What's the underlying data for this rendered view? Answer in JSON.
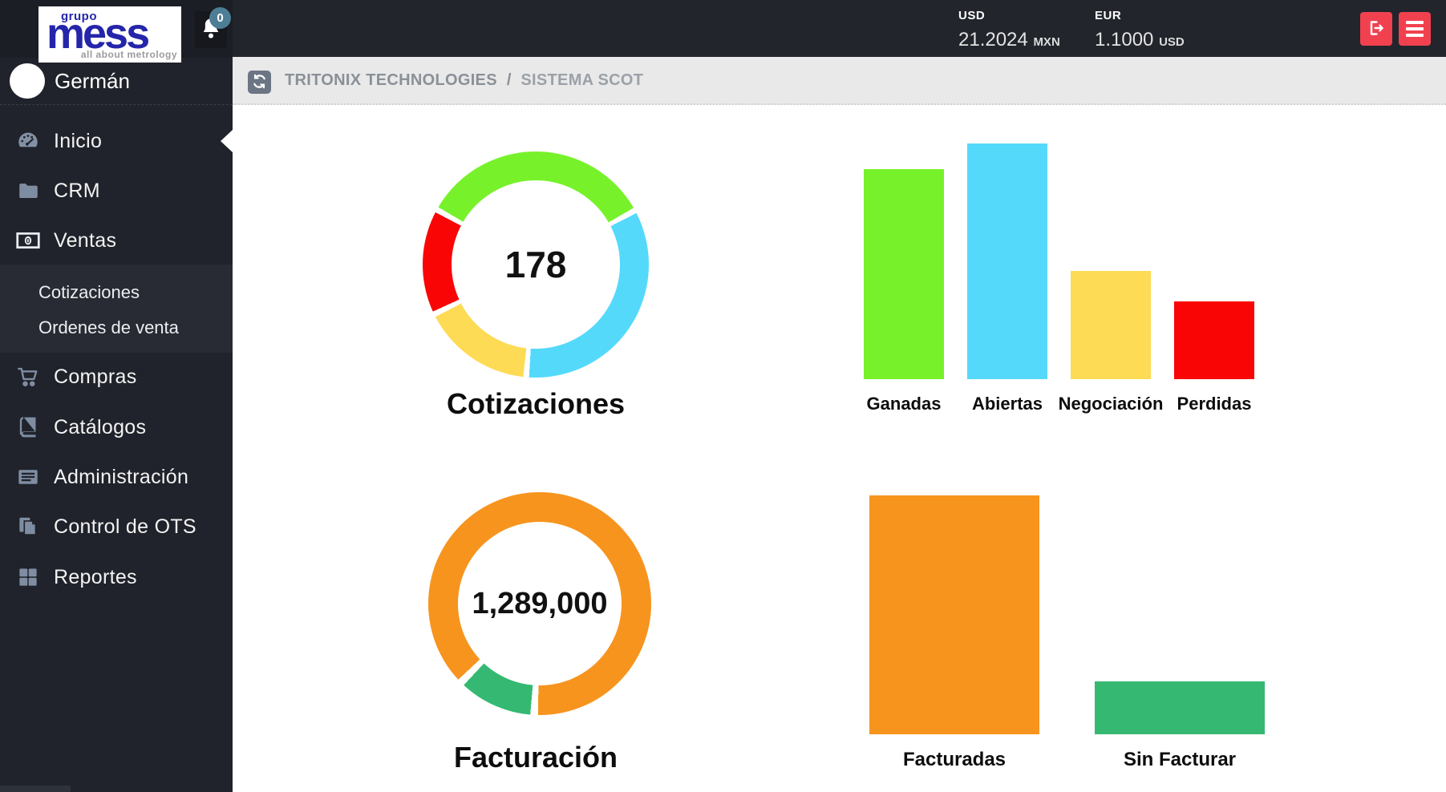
{
  "topbar": {
    "logo": {
      "group": "grupo",
      "brand": "mess",
      "tagline": "all about metrology"
    },
    "notifications": {
      "count": "0"
    },
    "currencies": [
      {
        "code": "USD",
        "value": "21.2024",
        "unit": "MXN"
      },
      {
        "code": "EUR",
        "value": "1.1000",
        "unit": "USD"
      }
    ]
  },
  "sidebar": {
    "user": {
      "name": "Germán"
    },
    "items": [
      {
        "label": "Inicio",
        "icon": "gauge-icon",
        "active": true
      },
      {
        "label": "CRM",
        "icon": "folder-icon"
      },
      {
        "label": "Ventas",
        "icon": "money-icon",
        "expanded": true
      },
      {
        "label": "Compras",
        "icon": "cart-icon"
      },
      {
        "label": "Catálogos",
        "icon": "book-icon"
      },
      {
        "label": "Administración",
        "icon": "newspaper-icon"
      },
      {
        "label": "Control de OTS",
        "icon": "paste-icon"
      },
      {
        "label": "Reportes",
        "icon": "grid-icon"
      }
    ],
    "ventas_submenu": [
      "Cotizaciones",
      "Ordenes de venta"
    ]
  },
  "breadcrumb": {
    "root": "TRITONIX TECHNOLOGIES",
    "separator": "/",
    "current": "SISTEMA SCOT"
  },
  "chart_data": [
    {
      "type": "donut",
      "title": "Cotizaciones",
      "center_value": "178",
      "start_angle_deg": 299,
      "gap_deg": 3,
      "legend_position": "none",
      "segments": [
        {
          "label": "Ganadas",
          "percent": 34.0,
          "color": "#77f22a"
        },
        {
          "label": "Abiertas",
          "percent": 34.3,
          "color": "#55d9fb"
        },
        {
          "label": "Negociación",
          "percent": 16.4,
          "color": "#fddb55"
        },
        {
          "label": "Perdidas",
          "percent": 15.3,
          "color": "#fa0505"
        }
      ]
    },
    {
      "type": "bar",
      "categories": [
        "Ganadas",
        "Abiertas",
        "Negociación",
        "Perdidas"
      ],
      "values_pct_of_max": [
        89,
        100,
        46,
        33
      ],
      "bar_colors": [
        "#77f22a",
        "#55d9fb",
        "#fddb55",
        "#fa0505"
      ],
      "axis_labels_shown": false,
      "grid": false
    },
    {
      "type": "donut",
      "title": "Facturación",
      "center_value": "1,289,000",
      "start_angle_deg": 225,
      "gap_deg": 4,
      "legend_position": "none",
      "segments": [
        {
          "label": "Facturadas",
          "percent": 88.3,
          "color": "#f7941e"
        },
        {
          "label": "Sin Facturar",
          "percent": 11.7,
          "color": "#35b972"
        }
      ]
    },
    {
      "type": "bar",
      "categories": [
        "Facturadas",
        "Sin Facturar"
      ],
      "values_pct_of_max": [
        100,
        22
      ],
      "bar_colors": [
        "#f7941e",
        "#35b972"
      ],
      "axis_labels_shown": false,
      "grid": false
    }
  ],
  "colors": {
    "topbar_bg": "#22252c",
    "sidebar_bg": "#20232b",
    "submenu_bg": "#282b33",
    "breadcrumb_bg": "#e9e9e9",
    "accent_red": "#f1414f",
    "badge_blue": "#4e7e95",
    "logo_blue": "#2525ab"
  }
}
